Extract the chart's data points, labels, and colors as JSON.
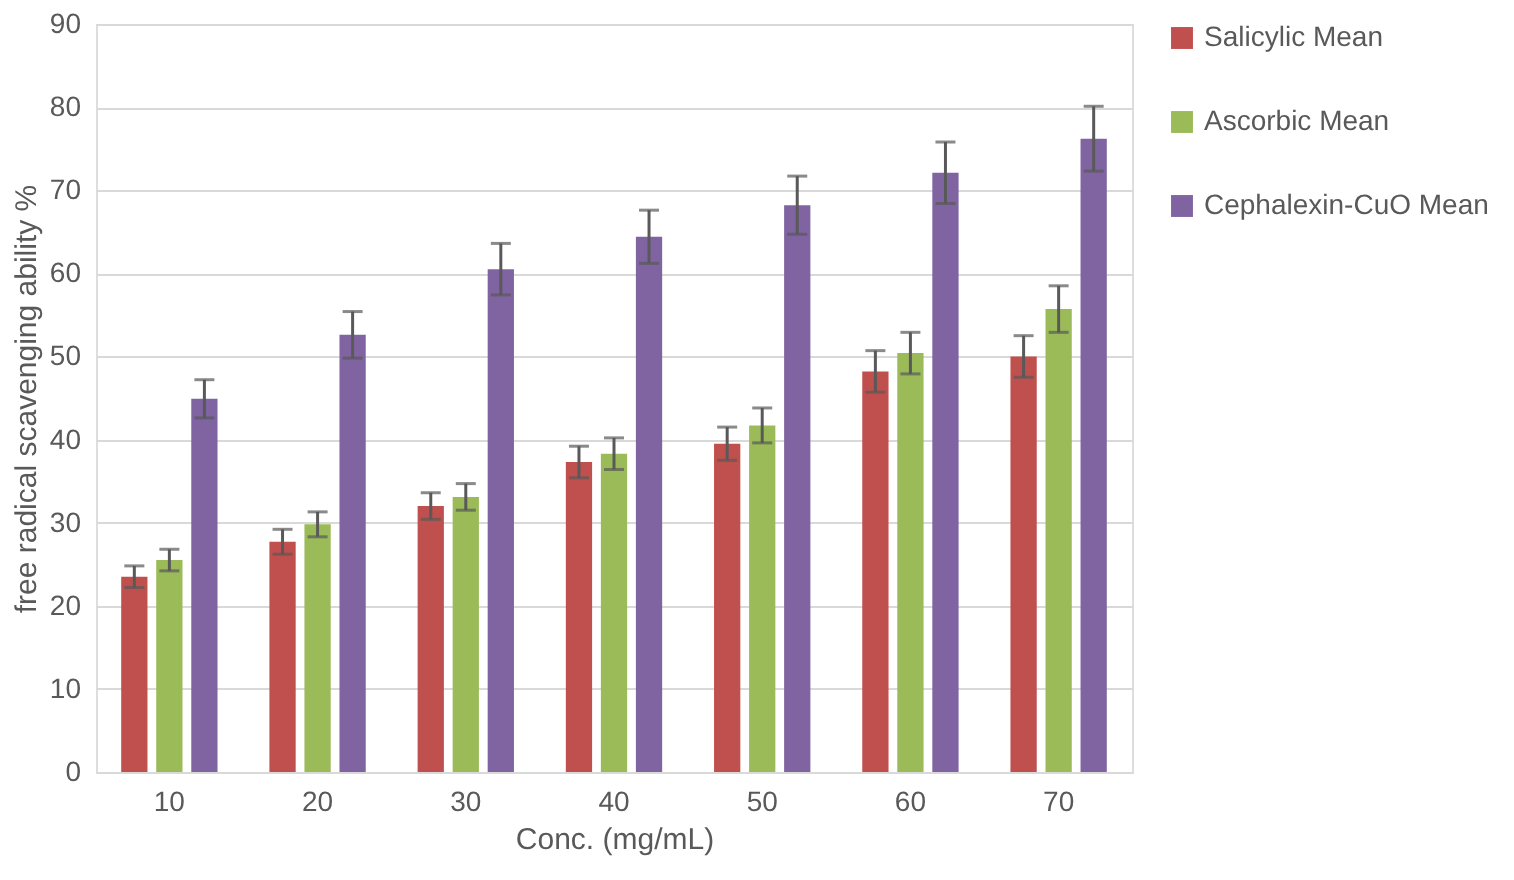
{
  "chart_data": {
    "type": "bar",
    "xlabel": "Conc. (mg/mL)",
    "ylabel": "free radical scavenging ability %",
    "categories": [
      "10",
      "20",
      "30",
      "40",
      "50",
      "60",
      "70"
    ],
    "series": [
      {
        "name": "Salicylic Mean",
        "color": "#c0504d",
        "values": [
          23.5,
          27.7,
          32.0,
          37.3,
          39.5,
          48.2,
          50.0
        ],
        "errors": [
          1.3,
          1.5,
          1.6,
          1.9,
          2.0,
          2.5,
          2.5
        ]
      },
      {
        "name": "Ascorbic Mean",
        "color": "#9bbb59",
        "values": [
          25.5,
          29.8,
          33.1,
          38.3,
          41.7,
          50.4,
          55.7
        ],
        "errors": [
          1.3,
          1.5,
          1.6,
          1.9,
          2.1,
          2.5,
          2.8
        ]
      },
      {
        "name": "Cephalexin-CuO Mean",
        "color": "#8064a2",
        "values": [
          44.9,
          52.6,
          60.5,
          64.4,
          68.2,
          72.1,
          76.2
        ],
        "errors": [
          2.3,
          2.8,
          3.1,
          3.2,
          3.5,
          3.7,
          3.9
        ]
      }
    ],
    "ylim": [
      0,
      90
    ],
    "yticks": [
      0,
      10,
      20,
      30,
      40,
      50,
      60,
      70,
      80,
      90
    ],
    "grid": "y",
    "legend": "right"
  }
}
